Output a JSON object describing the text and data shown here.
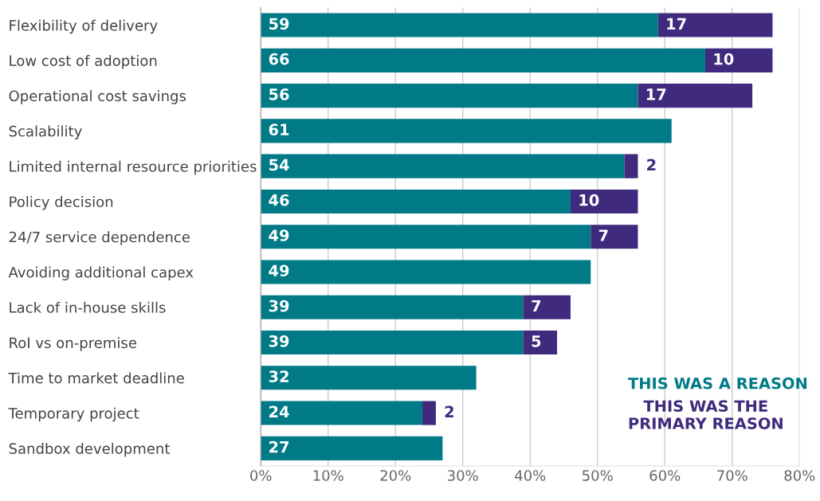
{
  "chart_data": {
    "type": "bar",
    "orientation": "horizontal",
    "stacked": true,
    "categories": [
      "Flexibility of delivery",
      "Low cost of adoption",
      "Operational cost savings",
      "Scalability",
      "Limited internal resource priorities",
      "Policy decision",
      "24/7 service dependence",
      "Avoiding additional capex",
      "Lack of in-house skills",
      "RoI vs on-premise",
      "Time to market deadline",
      "Temporary project",
      "Sandbox development"
    ],
    "series": [
      {
        "name": "THIS WAS A REASON",
        "color": "#007a87",
        "values": [
          59,
          66,
          56,
          61,
          54,
          46,
          49,
          49,
          39,
          39,
          32,
          24,
          27
        ]
      },
      {
        "name": "THIS WAS THE\nPRIMARY REASON",
        "color": "#3f2a7e",
        "values": [
          17,
          10,
          17,
          null,
          2,
          10,
          7,
          null,
          7,
          5,
          null,
          2,
          null
        ]
      }
    ],
    "xlim": [
      0,
      80
    ],
    "xticks": [
      {
        "value": 0,
        "label": "0%"
      },
      {
        "value": 10,
        "label": "10%"
      },
      {
        "value": 20,
        "label": "20%"
      },
      {
        "value": 30,
        "label": "30%"
      },
      {
        "value": 40,
        "label": "40%"
      },
      {
        "value": 50,
        "label": "50%"
      },
      {
        "value": 60,
        "label": "60%"
      },
      {
        "value": 70,
        "label": "70%"
      },
      {
        "value": 80,
        "label": "80%"
      }
    ],
    "grid": "x",
    "legend": "bottom right",
    "data_labels": true
  }
}
